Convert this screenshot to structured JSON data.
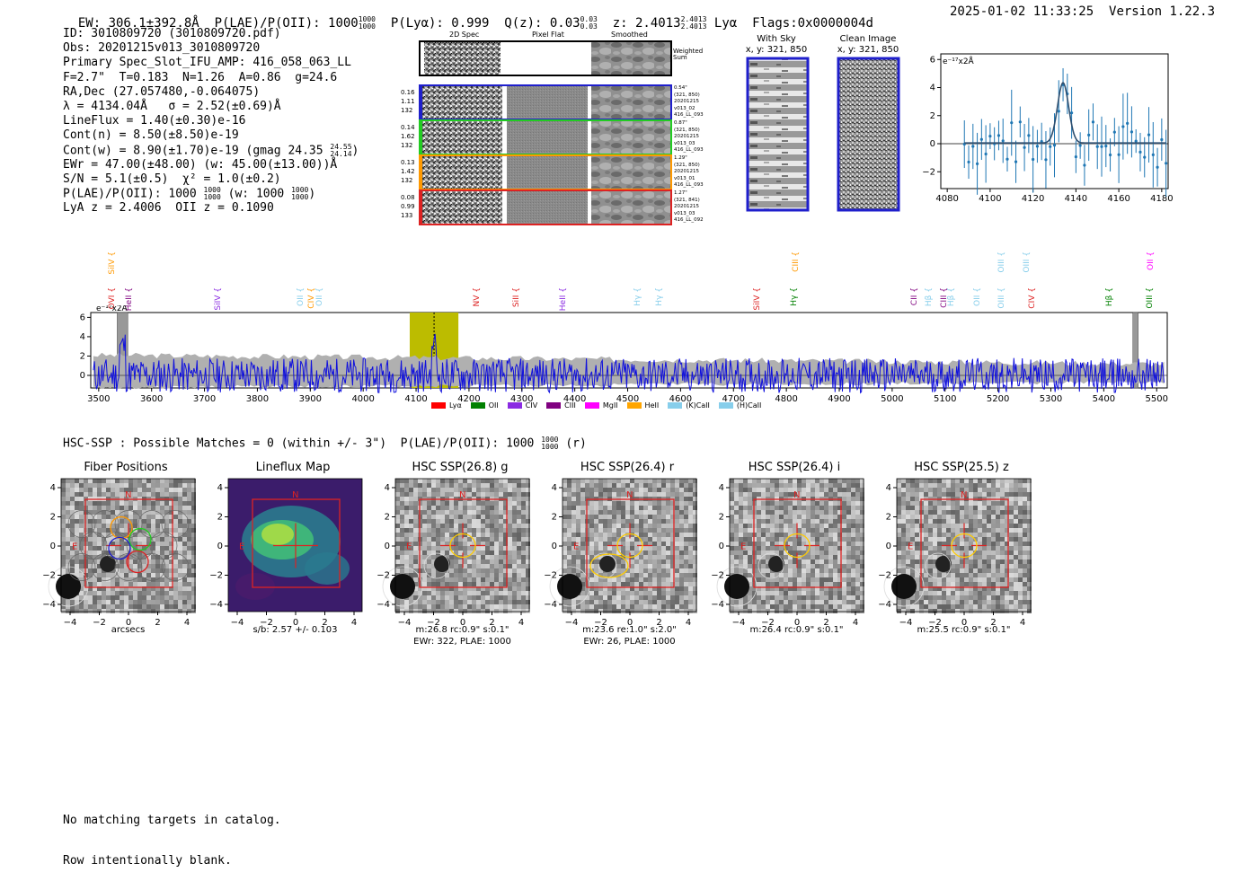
{
  "header": {
    "ew": "EW: 306.1±392.8Å",
    "plae_label": "P(LAE)/P(OII): 1000",
    "plae_hi": "1000",
    "plae_lo": "1000",
    "plya": "P(Lyα): 0.999",
    "qz": "Q(z): 0.03",
    "qz_hi": "0.03",
    "qz_lo": "0.03",
    "z": "z: 2.4013",
    "z_hi": "2.4013",
    "z_lo": "2.4013",
    "z_line": "Lyα",
    "flags": "Flags:0x0000004d",
    "timestamp": "2025-01-02 11:33:25",
    "version": "Version 1.22.3"
  },
  "info": {
    "id": "ID: 3010809720 (3010809720.pdf)",
    "obs": "Obs: 20201215v013_3010809720",
    "primary": "Primary Spec_Slot_IFU_AMP: 416_058_063_LL",
    "params": "F=2.7\"  T=0.183  N=1.26  A=0.86  g=24.6",
    "radec": "RA,Dec (27.057480,-0.064075)",
    "lambda": "λ = 4134.04Å   σ = 2.52(±0.69)Å",
    "lineflux": "LineFlux = 1.40(±0.30)e-16",
    "contn": "Cont(n) = 8.50(±8.50)e-19",
    "contw": "Cont(w) = 8.90(±1.70)e-19 (gmag 24.35",
    "contw_hi": "24.55",
    "contw_lo": "24.14",
    "ewr": "EWr = 47.00(±48.00) (w: 45.00(±13.00))Å",
    "sn": "S/N = 5.1(±0.5)  χ² = 1.0(±0.2)",
    "plae": "P(LAE)/P(OII): 1000",
    "plae_hi": "1000",
    "plae_lo": "1000",
    "plae_w": "(w: 1000",
    "plae_w_hi": "1000",
    "plae_w_lo": "1000",
    "lya": "LyA z = 2.4006  OII z = 0.1090"
  },
  "cutouts": {
    "col_titles": [
      "2D Spec",
      "Pixel Flat",
      "Smoothed"
    ],
    "weighted_label": "Weighted Sum",
    "rows": [
      {
        "left": [
          "0.16",
          "1.11",
          "132"
        ],
        "right": [
          "0.54\"",
          "(321, 850)",
          "20201215",
          "v013_02",
          "416_LL_093"
        ],
        "color": "#1f1fcc"
      },
      {
        "left": [
          "0.14",
          "1.62",
          "132"
        ],
        "right": [
          "0.87\"",
          "(321, 850)",
          "20201215",
          "v013_03",
          "416_LL_093"
        ],
        "color": "#22cc22"
      },
      {
        "left": [
          "0.13",
          "1.42",
          "132"
        ],
        "right": [
          "1.29\"",
          "(321, 850)",
          "20201215",
          "v013_01",
          "416_LL_093"
        ],
        "color": "#ff9900"
      },
      {
        "left": [
          "0.08",
          "0.99",
          "133"
        ],
        "right": [
          "1.27\"",
          "(321, 841)",
          "20201215",
          "v013_03",
          "416_LL_092"
        ],
        "color": "#dd2222"
      }
    ]
  },
  "sky": {
    "with_sky_title": "With Sky",
    "with_sky_xy": "x, y: 321, 850",
    "clean_title": "Clean Image",
    "clean_xy": "x, y: 321, 850"
  },
  "zoom_plot": {
    "unit": "e⁻¹⁷x2Å",
    "xticks": [
      "4080",
      "4100",
      "4120",
      "4140",
      "4160",
      "4180"
    ],
    "yticks": [
      "6",
      "4",
      "2",
      "0",
      "−2"
    ]
  },
  "spectrum": {
    "unit": "e⁻¹⁷x2Å",
    "xticks": [
      "3500",
      "3600",
      "3700",
      "3800",
      "3900",
      "4000",
      "4100",
      "4200",
      "4300",
      "4400",
      "4500",
      "4600",
      "4700",
      "4800",
      "4900",
      "5000",
      "5100",
      "5200",
      "5300",
      "5400",
      "5500"
    ],
    "yticks": [
      "6",
      "4",
      "2",
      "0"
    ],
    "lines": [
      {
        "name": "SiIV",
        "wave": 3526,
        "color": "#ff9900",
        "row": 0
      },
      {
        "name": "OVI",
        "wave": 3526,
        "color": "#dd2222",
        "row": 1
      },
      {
        "name": "HeII",
        "wave": 3558,
        "color": "#7f007f",
        "row": 1
      },
      {
        "name": "SiIV",
        "wave": 3727,
        "color": "#8a2be2",
        "row": 1
      },
      {
        "name": "OII",
        "wave": 3882,
        "color": "#87ceeb",
        "row": 1
      },
      {
        "name": "CIV",
        "wave": 3903,
        "color": "#ff9900",
        "row": 1
      },
      {
        "name": "OII",
        "wave": 3918,
        "color": "#87ceeb",
        "row": 1
      },
      {
        "name": "NV",
        "wave": 4215,
        "color": "#dd2222",
        "row": 1
      },
      {
        "name": "SiII",
        "wave": 4290,
        "color": "#dd2222",
        "row": 1
      },
      {
        "name": "HeII",
        "wave": 4378,
        "color": "#8a2be2",
        "row": 1
      },
      {
        "name": "Hγ",
        "wave": 4520,
        "color": "#87ceeb",
        "row": 1
      },
      {
        "name": "Hγ",
        "wave": 4560,
        "color": "#87ceeb",
        "row": 1
      },
      {
        "name": "SiIV",
        "wave": 4745,
        "color": "#dd2222",
        "row": 1
      },
      {
        "name": "CIII",
        "wave": 4818,
        "color": "#ff9900",
        "row": 0
      },
      {
        "name": "Hγ",
        "wave": 4815,
        "color": "#008000",
        "row": 1
      },
      {
        "name": "CII",
        "wave": 5042,
        "color": "#7f007f",
        "row": 1
      },
      {
        "name": "Hβ",
        "wave": 5070,
        "color": "#87ceeb",
        "row": 1
      },
      {
        "name": "CIII",
        "wave": 5098,
        "color": "#7f007f",
        "row": 1
      },
      {
        "name": "Hβ",
        "wave": 5112,
        "color": "#87ceeb",
        "row": 1
      },
      {
        "name": "OII",
        "wave": 5162,
        "color": "#87ceeb",
        "row": 1
      },
      {
        "name": "OIII",
        "wave": 5208,
        "color": "#87ceeb",
        "row": 0
      },
      {
        "name": "OIII",
        "wave": 5255,
        "color": "#87ceeb",
        "row": 0
      },
      {
        "name": "OIII",
        "wave": 5208,
        "color": "#87ceeb",
        "row": 1
      },
      {
        "name": "CIV",
        "wave": 5265,
        "color": "#dd2222",
        "row": 1
      },
      {
        "name": "Hβ",
        "wave": 5412,
        "color": "#008000",
        "row": 1
      },
      {
        "name": "OII",
        "wave": 5490,
        "color": "#ff00ff",
        "row": 0
      },
      {
        "name": "OIII",
        "wave": 5488,
        "color": "#008000",
        "row": 1
      }
    ],
    "legend": [
      {
        "label": "Lyα",
        "color": "#ff0000"
      },
      {
        "label": "OII",
        "color": "#008000"
      },
      {
        "label": "CIV",
        "color": "#8a2be2"
      },
      {
        "label": "CIII",
        "color": "#800080"
      },
      {
        "label": "MgII",
        "color": "#ff00ff"
      },
      {
        "label": "HeII",
        "color": "#ffa500"
      },
      {
        "label": "(K)CaII",
        "color": "#87ceeb"
      },
      {
        "label": "(H)CaII",
        "color": "#87ceeb"
      }
    ]
  },
  "hsc": {
    "summary": "HSC-SSP : Possible Matches = 0 (within +/- 3\")  P(LAE)/P(OII): 1000",
    "summary_hi": "1000",
    "summary_lo": "1000",
    "summary_band": "(r)",
    "panels": [
      {
        "title": "Fiber Positions",
        "sub1": "arcsecs",
        "sub2": ""
      },
      {
        "title": "Lineflux Map",
        "sub1": "s/b: 2.57 +/- 0.103",
        "sub2": ""
      },
      {
        "title": "HSC SSP(26.8) g",
        "sub1": "m:26.8 rc:0.9\"  s:0.1\"",
        "sub2": "EWr: 322, PLAE: 1000"
      },
      {
        "title": "HSC SSP(26.4) r",
        "sub1": "m:23.6  re:1.0\"  s:2.0\"",
        "sub2": "EWr: 26, PLAE: 1000"
      },
      {
        "title": "HSC SSP(26.4) i",
        "sub1": "m:26.4 rc:0.9\"  s:0.1\"",
        "sub2": ""
      },
      {
        "title": "HSC SSP(25.5) z",
        "sub1": "m:25.5 rc:0.9\"  s:0.1\"",
        "sub2": ""
      }
    ],
    "xticks": [
      "−4",
      "−2",
      "0",
      "2",
      "4"
    ],
    "yticks": [
      "4",
      "2",
      "0",
      "−2",
      "−4"
    ],
    "compass_n": "N",
    "compass_e": "E"
  },
  "footer": {
    "line1": "No matching targets in catalog.",
    "line2": "Row intentionally blank."
  }
}
